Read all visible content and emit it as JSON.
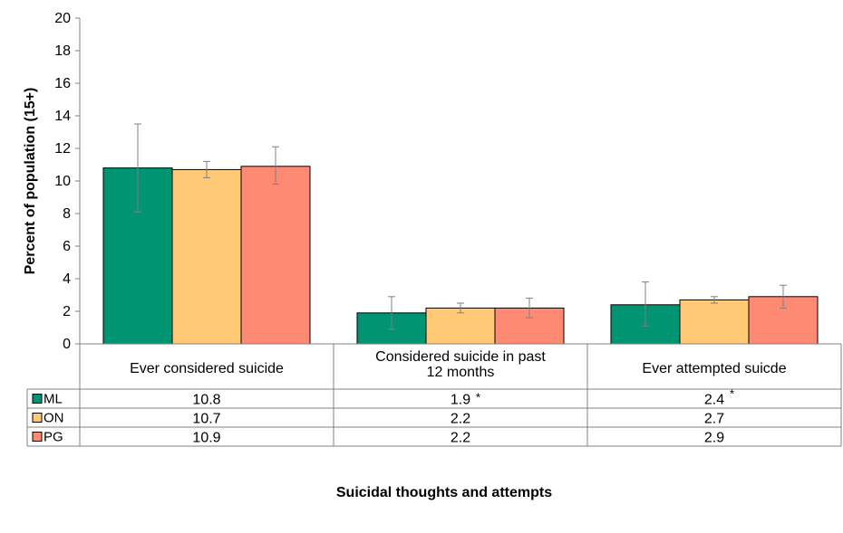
{
  "chart_data": {
    "type": "bar",
    "title": "",
    "xlabel": "Suicidal thoughts and attempts",
    "ylabel": "Percent of population (15+)",
    "ylim": [
      0,
      20
    ],
    "yticks": [
      0,
      2,
      4,
      6,
      8,
      10,
      12,
      14,
      16,
      18,
      20
    ],
    "grid": false,
    "legend": "data-table-left",
    "categories": [
      [
        "Ever considered suicide"
      ],
      [
        "Considered suicide in past",
        "12 months"
      ],
      [
        "Ever attempted suicde"
      ]
    ],
    "series": [
      {
        "name": "ML",
        "color": "#009473",
        "values": [
          10.8,
          1.9,
          2.4
        ],
        "labels": [
          "10.8",
          "1.9",
          "2.4"
        ],
        "notes": [
          "",
          "*",
          "*"
        ],
        "error_low": [
          8.1,
          0.9,
          1.1
        ],
        "error_high": [
          13.5,
          2.9,
          3.8
        ]
      },
      {
        "name": "ON",
        "color": "#FFC976",
        "values": [
          10.7,
          2.2,
          2.7
        ],
        "labels": [
          "10.7",
          "2.2",
          "2.7"
        ],
        "notes": [
          "",
          "",
          ""
        ],
        "error_low": [
          10.2,
          1.9,
          2.5
        ],
        "error_high": [
          11.2,
          2.5,
          2.9
        ]
      },
      {
        "name": "PG",
        "color": "#FF8A73",
        "values": [
          10.9,
          2.2,
          2.9
        ],
        "labels": [
          "10.9",
          "2.2",
          "2.9"
        ],
        "notes": [
          "",
          "",
          ""
        ],
        "error_low": [
          9.8,
          1.6,
          2.2
        ],
        "error_high": [
          12.1,
          2.8,
          3.6
        ]
      }
    ]
  }
}
